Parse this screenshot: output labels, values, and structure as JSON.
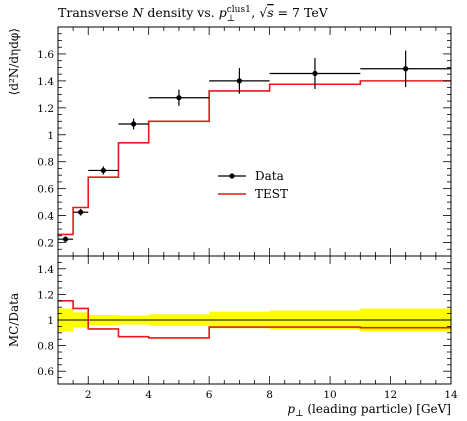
{
  "chart_data": {
    "type": "line",
    "title": {
      "lead": "Transverse ",
      "var": "N",
      "mid": " density vs. ",
      "pvar": "p",
      "psub": "⊥",
      "psup": "clus1",
      "tail1": ", ",
      "sqrt_sym": "√",
      "sqrt_var": "s",
      "tail2": " = 7 TeV"
    },
    "ylabel_main": "⟨d²N/dηdφ⟩",
    "ylabel_ratio": "MC/Data",
    "xlabel": {
      "var": "p",
      "sub": "⊥",
      "rest": " (leading particle) [GeV]"
    },
    "xlim": [
      1,
      14
    ],
    "ylim_main": [
      0.1,
      1.8
    ],
    "ylim_ratio": [
      0.5,
      1.5
    ],
    "x_ticks": [
      "2",
      "4",
      "6",
      "8",
      "10",
      "12",
      "14"
    ],
    "y_ticks_main": [
      "0.2",
      "0.4",
      "0.6",
      "0.8",
      "1",
      "1.2",
      "1.4",
      "1.6"
    ],
    "y_ticks_ratio": [
      "0.6",
      "0.8",
      "1",
      "1.2",
      "1.4"
    ],
    "legend": {
      "position": "center-right",
      "entries": [
        "Data",
        "TEST"
      ]
    },
    "colors": {
      "data": "#000000",
      "mc": "#e41a1c",
      "band": "#ffff00"
    },
    "data": {
      "name": "Data",
      "points": [
        {
          "xlo": 1.0,
          "xhi": 1.5,
          "x": 1.25,
          "y": 0.225,
          "err": 0.02
        },
        {
          "xlo": 1.5,
          "xhi": 2.0,
          "x": 1.75,
          "y": 0.425,
          "err": 0.025
        },
        {
          "xlo": 2.0,
          "xhi": 3.0,
          "x": 2.5,
          "y": 0.735,
          "err": 0.03
        },
        {
          "xlo": 3.0,
          "xhi": 4.0,
          "x": 3.5,
          "y": 1.08,
          "err": 0.04
        },
        {
          "xlo": 4.0,
          "xhi": 6.0,
          "x": 5.0,
          "y": 1.275,
          "err": 0.06
        },
        {
          "xlo": 6.0,
          "xhi": 8.0,
          "x": 7.0,
          "y": 1.4,
          "err": 0.095
        },
        {
          "xlo": 8.0,
          "xhi": 11.0,
          "x": 9.5,
          "y": 1.455,
          "err": 0.115
        },
        {
          "xlo": 11.0,
          "xhi": 14.0,
          "x": 12.5,
          "y": 1.49,
          "err": 0.135
        }
      ]
    },
    "mc": {
      "name": "TEST",
      "bins": [
        {
          "xlo": 1.0,
          "xhi": 1.5,
          "y": 0.26
        },
        {
          "xlo": 1.5,
          "xhi": 2.0,
          "y": 0.46
        },
        {
          "xlo": 2.0,
          "xhi": 3.0,
          "y": 0.685
        },
        {
          "xlo": 3.0,
          "xhi": 4.0,
          "y": 0.94
        },
        {
          "xlo": 4.0,
          "xhi": 6.0,
          "y": 1.1
        },
        {
          "xlo": 6.0,
          "xhi": 8.0,
          "y": 1.325
        },
        {
          "xlo": 8.0,
          "xhi": 11.0,
          "y": 1.375
        },
        {
          "xlo": 11.0,
          "xhi": 14.0,
          "y": 1.4
        }
      ]
    },
    "ratio": {
      "mc": [
        {
          "xlo": 1.0,
          "xhi": 1.5,
          "y": 1.15
        },
        {
          "xlo": 1.5,
          "xhi": 2.0,
          "y": 1.09
        },
        {
          "xlo": 2.0,
          "xhi": 3.0,
          "y": 0.93
        },
        {
          "xlo": 3.0,
          "xhi": 4.0,
          "y": 0.87
        },
        {
          "xlo": 4.0,
          "xhi": 6.0,
          "y": 0.86
        },
        {
          "xlo": 6.0,
          "xhi": 8.0,
          "y": 0.945
        },
        {
          "xlo": 8.0,
          "xhi": 11.0,
          "y": 0.945
        },
        {
          "xlo": 11.0,
          "xhi": 14.0,
          "y": 0.94
        }
      ],
      "band": [
        {
          "xlo": 1.0,
          "xhi": 1.5,
          "lo": 0.91,
          "hi": 1.09
        },
        {
          "xlo": 1.5,
          "xhi": 2.0,
          "lo": 0.94,
          "hi": 1.06
        },
        {
          "xlo": 2.0,
          "xhi": 3.0,
          "lo": 0.96,
          "hi": 1.04
        },
        {
          "xlo": 3.0,
          "xhi": 4.0,
          "lo": 0.965,
          "hi": 1.035
        },
        {
          "xlo": 4.0,
          "xhi": 6.0,
          "lo": 0.955,
          "hi": 1.045
        },
        {
          "xlo": 6.0,
          "xhi": 8.0,
          "lo": 0.935,
          "hi": 1.065
        },
        {
          "xlo": 8.0,
          "xhi": 11.0,
          "lo": 0.925,
          "hi": 1.075
        },
        {
          "xlo": 11.0,
          "xhi": 14.0,
          "lo": 0.91,
          "hi": 1.09
        }
      ]
    }
  }
}
